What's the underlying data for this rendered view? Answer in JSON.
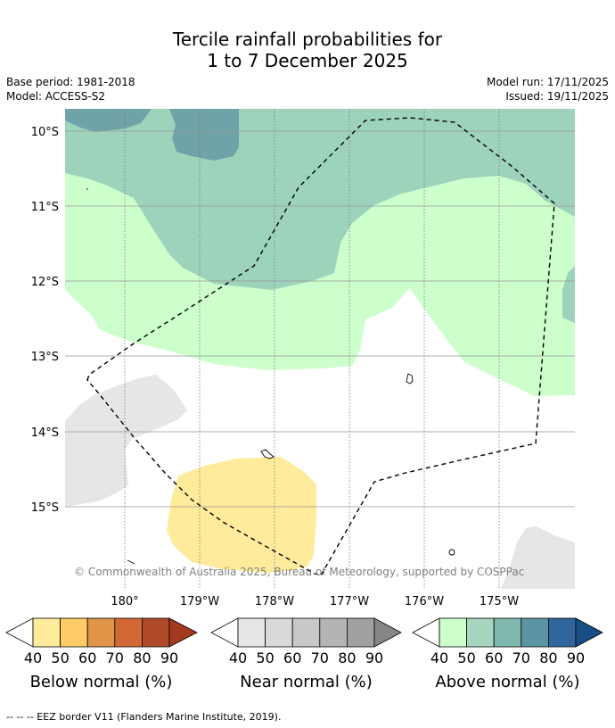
{
  "title": {
    "line1": "Tercile rainfall probabilities for",
    "line2": "1 to 7 December 2025"
  },
  "meta": {
    "base_period": "Base period: 1981-2018",
    "model": "Model: ACCESS-S2",
    "model_run": "Model run: 17/11/2025",
    "issued": "Issued: 19/11/2025"
  },
  "map": {
    "lat_labels": [
      "10°S",
      "11°S",
      "12°S",
      "13°S",
      "14°S",
      "15°S"
    ],
    "lon_labels": [
      "180°",
      "179°W",
      "178°W",
      "177°W",
      "176°W",
      "175°W"
    ],
    "copyright": "© Commonwealth of Australia 2025, Bureau of Meteorology, supported by COSPPac",
    "colors": {
      "above_40": "#ccffcc",
      "above_50": "#9dd2bb",
      "above_60": "#6fa3a8",
      "near": "#e6e6e6",
      "below_40": "#ffeb9c",
      "grid": "#999999"
    }
  },
  "colorbars": [
    {
      "title": "Below normal (%)",
      "ticks": [
        "40",
        "50",
        "60",
        "70",
        "80",
        "90"
      ],
      "colors": [
        "#ffffff",
        "#ffeb9c",
        "#fecb66",
        "#e09548",
        "#d16835",
        "#ae4a27",
        "#a33b20"
      ]
    },
    {
      "title": "Near normal (%)",
      "ticks": [
        "40",
        "50",
        "60",
        "70",
        "80",
        "90"
      ],
      "colors": [
        "#ffffff",
        "#e6e6e6",
        "#d9d9d9",
        "#c8c8c8",
        "#b4b4b4",
        "#a0a0a0",
        "#868686"
      ]
    },
    {
      "title": "Above normal (%)",
      "ticks": [
        "40",
        "50",
        "60",
        "70",
        "80",
        "90"
      ],
      "colors": [
        "#ffffff",
        "#ccffcc",
        "#a6d6be",
        "#80b7ae",
        "#5b95a3",
        "#31659d",
        "#174e83"
      ]
    }
  ],
  "footnote": "--  --  -- EEZ border V11 (Flanders Marine Institute, 2019)."
}
